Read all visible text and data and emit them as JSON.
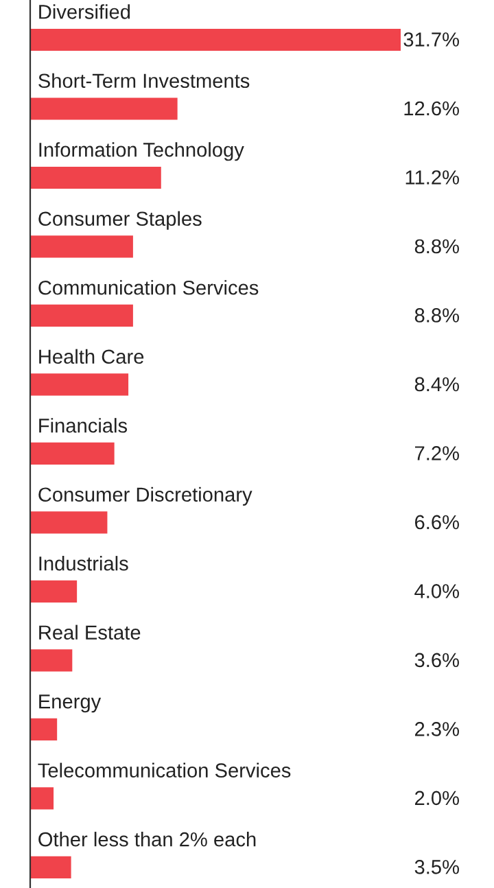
{
  "chart_data": {
    "type": "bar",
    "orientation": "horizontal",
    "categories": [
      "Diversified",
      "Short-Term Investments",
      "Information Technology",
      "Consumer Staples",
      "Communication Services",
      "Health Care",
      "Financials",
      "Consumer Discretionary",
      "Industrials",
      "Real Estate",
      "Energy",
      "Telecommunication Services",
      "Other less than 2% each"
    ],
    "values": [
      31.7,
      12.6,
      11.2,
      8.8,
      8.8,
      8.4,
      7.2,
      6.6,
      4.0,
      3.6,
      2.3,
      2.0,
      3.5
    ],
    "value_labels": [
      "31.7%",
      "12.6%",
      "11.2%",
      "8.8%",
      "8.8%",
      "8.4%",
      "7.2%",
      "6.6%",
      "4.0%",
      "3.6%",
      "2.3%",
      "2.0%",
      "3.5%"
    ],
    "color": "#f0434b"
  }
}
